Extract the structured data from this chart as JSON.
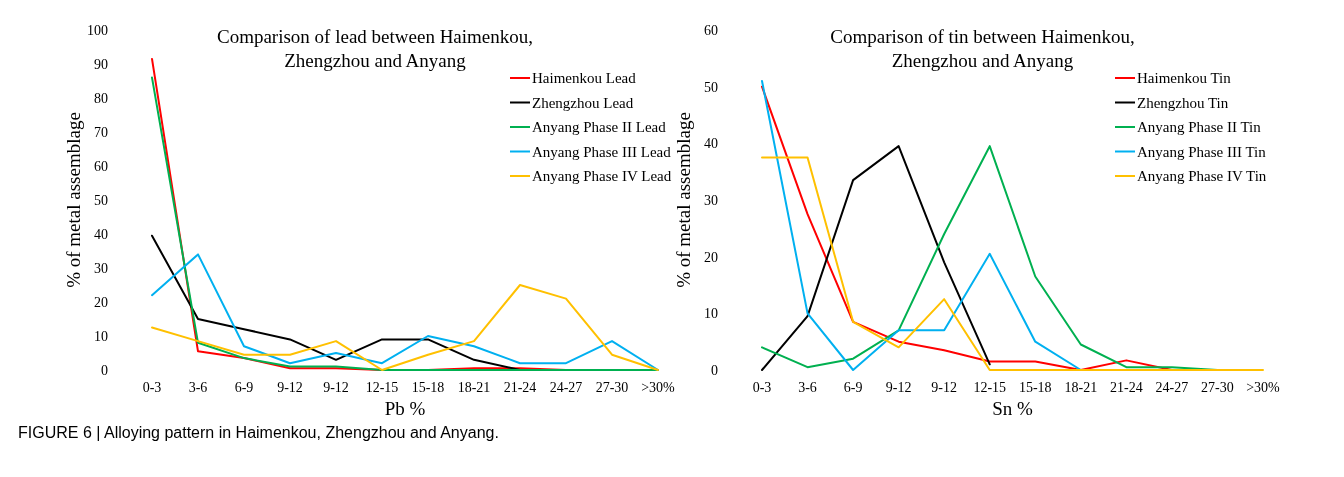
{
  "chart_data": [
    {
      "type": "line",
      "title": "Comparison of lead between Haimenkou,\nZhengzhou and Anyang",
      "xlabel": "Pb %",
      "ylabel": "% of metal assemblage",
      "categories": [
        "0-3",
        "3-6",
        "6-9",
        "9-12",
        "9-12",
        "12-15",
        "15-18",
        "18-21",
        "21-24",
        "24-27",
        "27-30",
        ">30%"
      ],
      "ylim": [
        0,
        100
      ],
      "yticks": [
        0,
        10,
        20,
        30,
        40,
        50,
        60,
        70,
        80,
        90,
        100
      ],
      "grid": false,
      "legend": "top right",
      "series": [
        {
          "name": "Haimenkou Lead",
          "color": "#ff0000",
          "values": [
            91.5,
            5.5,
            3.5,
            0.5,
            0.5,
            0,
            0,
            0.5,
            0.5,
            0,
            0,
            0
          ]
        },
        {
          "name": "Zhengzhou Lead",
          "color": "#000000",
          "values": [
            39.5,
            15,
            12,
            9,
            3,
            9,
            9,
            3,
            0,
            null,
            null,
            null
          ]
        },
        {
          "name": "Anyang Phase II Lead",
          "color": "#00b050",
          "values": [
            86,
            8,
            3.5,
            1,
            1,
            0,
            0,
            0,
            0,
            0,
            0,
            0
          ]
        },
        {
          "name": "Anyang Phase III Lead",
          "color": "#00b0f0",
          "values": [
            22,
            34,
            7,
            2,
            5,
            2,
            10,
            7,
            2,
            2,
            8.5,
            0
          ]
        },
        {
          "name": "Anyang Phase IV Lead",
          "color": "#ffc000",
          "values": [
            12.5,
            8.5,
            4.5,
            4.5,
            8.5,
            0,
            4.5,
            8.5,
            25,
            21,
            4.5,
            0
          ]
        }
      ],
      "annotations": [
        "FIGURE 6 | Alloying pattern in Haimenkou, Zhengzhou and Anyang."
      ]
    },
    {
      "type": "line",
      "title": "Comparison of tin between Haimenkou,\nZhengzhou and Anyang",
      "xlabel": "Sn %",
      "ylabel": "% of metal assemblage",
      "categories": [
        "0-3",
        "3-6",
        "6-9",
        "9-12",
        "9-12",
        "12-15",
        "15-18",
        "18-21",
        "21-24",
        "24-27",
        "27-30",
        ">30%"
      ],
      "ylim": [
        0,
        60
      ],
      "yticks": [
        0,
        10,
        20,
        30,
        40,
        50,
        60
      ],
      "grid": false,
      "legend": "top right",
      "series": [
        {
          "name": "Haimenkou Tin",
          "color": "#ff0000",
          "values": [
            50,
            27.5,
            8.5,
            5,
            3.5,
            1.5,
            1.5,
            0,
            1.7,
            0,
            null,
            null
          ]
        },
        {
          "name": "Zhengzhou Tin",
          "color": "#000000",
          "values": [
            0,
            9.5,
            33.5,
            39.5,
            19,
            1,
            null,
            null,
            null,
            null,
            null,
            null
          ]
        },
        {
          "name": "Anyang Phase II Tin",
          "color": "#00b050",
          "values": [
            4,
            0.5,
            2,
            7,
            24,
            39.5,
            16.5,
            4.5,
            0.5,
            0.5,
            0,
            null
          ]
        },
        {
          "name": "Anyang Phase III Tin",
          "color": "#00b0f0",
          "values": [
            51,
            10,
            0,
            7,
            7,
            20.5,
            5,
            0,
            null,
            null,
            null,
            null
          ]
        },
        {
          "name": "Anyang Phase IV Tin",
          "color": "#ffc000",
          "values": [
            37.5,
            37.5,
            8.5,
            4,
            12.5,
            0,
            0,
            0,
            0,
            0,
            0,
            0
          ]
        }
      ]
    }
  ]
}
